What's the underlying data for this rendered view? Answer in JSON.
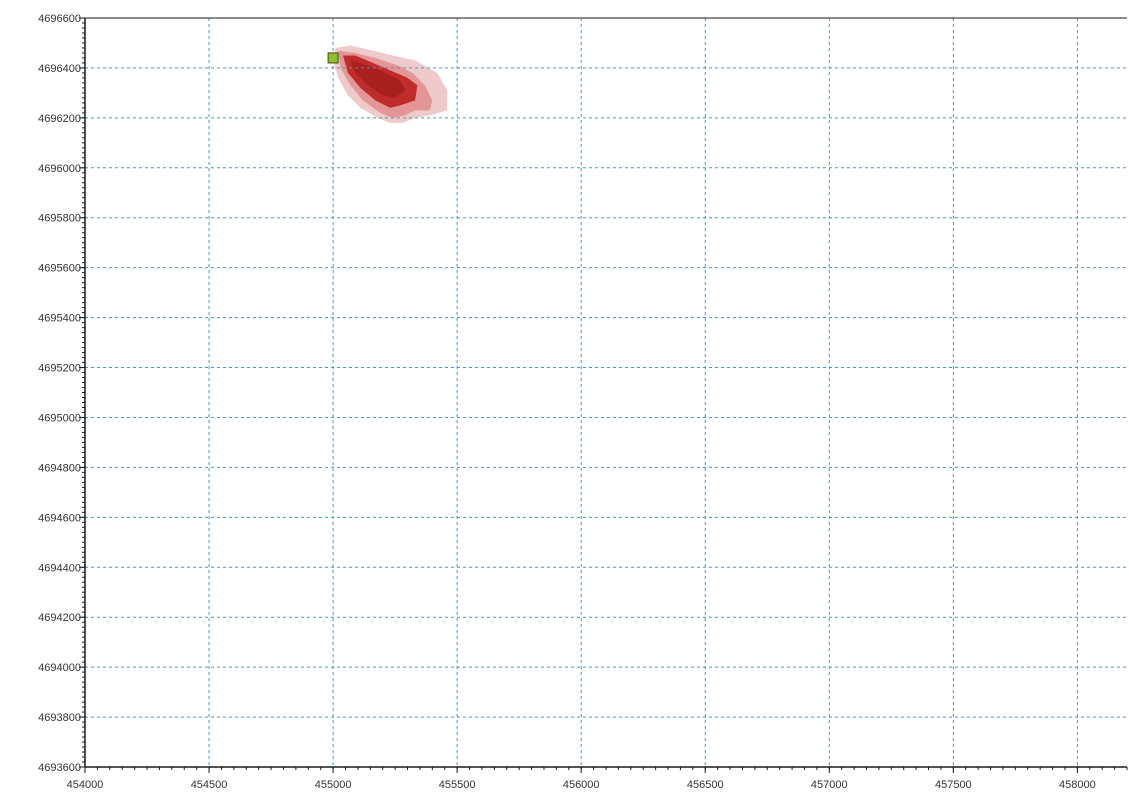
{
  "chart_data": {
    "type": "scatter",
    "title": "",
    "xlabel": "",
    "ylabel": "",
    "xlim": [
      454000,
      458200
    ],
    "ylim": [
      4693600,
      4696600
    ],
    "grid": true,
    "grid_style": "dashed",
    "x_ticks": [
      454000,
      454500,
      455000,
      455500,
      456000,
      456500,
      457000,
      457500,
      458000
    ],
    "y_ticks": [
      4693600,
      4693800,
      4694000,
      4694200,
      4694400,
      4694600,
      4694800,
      4695000,
      4695200,
      4695400,
      4695600,
      4695800,
      4696000,
      4696200,
      4696400,
      4696600
    ],
    "x_tick_labels": [
      "454000",
      "454500",
      "455000",
      "455500",
      "456000",
      "456500",
      "457000",
      "457500",
      "458000"
    ],
    "y_tick_labels": [
      "4693600",
      "4693800",
      "4694000",
      "4694200",
      "4694400",
      "4694600",
      "4694800",
      "4695000",
      "4695200",
      "4695400",
      "4695600",
      "4695800",
      "4696000",
      "4696200",
      "4696400",
      "4696600"
    ],
    "source_point": {
      "x": 455000,
      "y": 4696440
    },
    "contours": [
      {
        "level": "outer",
        "color": "#efcaca",
        "points": [
          [
            455010,
            4696480
          ],
          [
            455070,
            4696490
          ],
          [
            455160,
            4696470
          ],
          [
            455240,
            4696450
          ],
          [
            455330,
            4696430
          ],
          [
            455420,
            4696380
          ],
          [
            455460,
            4696310
          ],
          [
            455460,
            4696230
          ],
          [
            455390,
            4696210
          ],
          [
            455330,
            4696200
          ],
          [
            455280,
            4696180
          ],
          [
            455230,
            4696180
          ],
          [
            455180,
            4696200
          ],
          [
            455110,
            4696240
          ],
          [
            455060,
            4696290
          ],
          [
            455020,
            4696360
          ],
          [
            455000,
            4696430
          ]
        ]
      },
      {
        "level": "middle",
        "color": "#e49696",
        "points": [
          [
            455020,
            4696470
          ],
          [
            455090,
            4696460
          ],
          [
            455170,
            4696440
          ],
          [
            455260,
            4696410
          ],
          [
            455320,
            4696380
          ],
          [
            455370,
            4696330
          ],
          [
            455400,
            4696270
          ],
          [
            455390,
            4696230
          ],
          [
            455330,
            4696230
          ],
          [
            455290,
            4696210
          ],
          [
            455240,
            4696200
          ],
          [
            455190,
            4696220
          ],
          [
            455120,
            4696270
          ],
          [
            455070,
            4696330
          ],
          [
            455030,
            4696400
          ]
        ]
      },
      {
        "level": "inner",
        "color": "#c02b2b",
        "points": [
          [
            455040,
            4696450
          ],
          [
            455090,
            4696450
          ],
          [
            455160,
            4696420
          ],
          [
            455230,
            4696390
          ],
          [
            455300,
            4696360
          ],
          [
            455340,
            4696330
          ],
          [
            455330,
            4696270
          ],
          [
            455270,
            4696250
          ],
          [
            455230,
            4696240
          ],
          [
            455170,
            4696270
          ],
          [
            455110,
            4696320
          ],
          [
            455060,
            4696380
          ]
        ]
      },
      {
        "level": "core",
        "color": "#a81f1f",
        "points": [
          [
            455070,
            4696430
          ],
          [
            455140,
            4696410
          ],
          [
            455210,
            4696380
          ],
          [
            455270,
            4696350
          ],
          [
            455290,
            4696310
          ],
          [
            455250,
            4696280
          ],
          [
            455200,
            4696290
          ],
          [
            455140,
            4696330
          ],
          [
            455090,
            4696380
          ]
        ]
      }
    ]
  }
}
